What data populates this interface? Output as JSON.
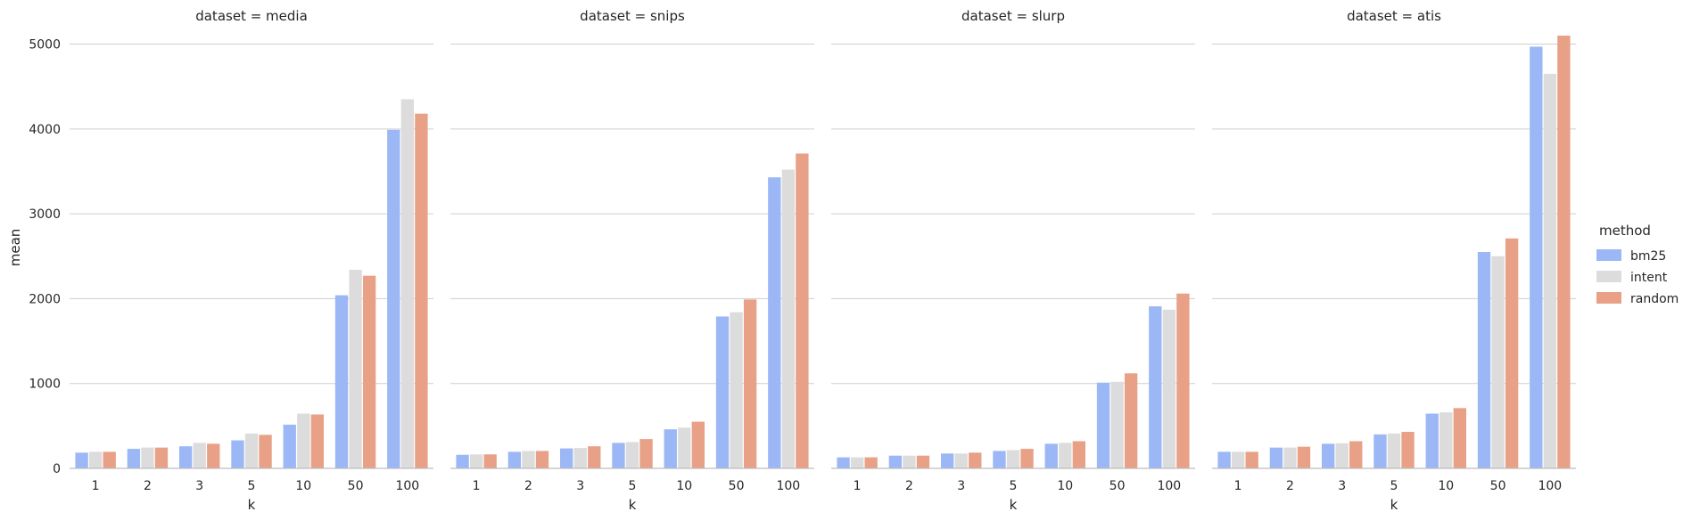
{
  "chart_data": {
    "type": "bar",
    "facet_title_prefix": "dataset = ",
    "xlabel": "k",
    "ylabel": "mean",
    "ylim": [
      0,
      5100
    ],
    "yticks": [
      0,
      1000,
      2000,
      3000,
      4000,
      5000
    ],
    "grid": "horizontal",
    "legend_title": "method",
    "legend_position": "right",
    "categories": [
      "1",
      "2",
      "3",
      "5",
      "10",
      "50",
      "100"
    ],
    "series_names": [
      "bm25",
      "intent",
      "random"
    ],
    "colors": [
      "#9bb7f5",
      "#dcdcdc",
      "#e8a086"
    ],
    "panels": [
      {
        "dataset": "media",
        "series": [
          {
            "name": "bm25",
            "values": [
              185,
              230,
              260,
              330,
              515,
              2040,
              3990
            ]
          },
          {
            "name": "intent",
            "values": [
              195,
              245,
              300,
              410,
              645,
              2340,
              4350
            ]
          },
          {
            "name": "random",
            "values": [
              195,
              245,
              290,
              395,
              635,
              2270,
              4180
            ]
          }
        ]
      },
      {
        "dataset": "snips",
        "series": [
          {
            "name": "bm25",
            "values": [
              160,
              195,
              235,
              300,
              460,
              1790,
              3430
            ]
          },
          {
            "name": "intent",
            "values": [
              165,
              205,
              240,
              310,
              480,
              1840,
              3520
            ]
          },
          {
            "name": "random",
            "values": [
              165,
              205,
              260,
              345,
              550,
              1990,
              3710
            ]
          }
        ]
      },
      {
        "dataset": "slurp",
        "series": [
          {
            "name": "bm25",
            "values": [
              130,
              150,
              175,
              205,
              290,
              1010,
              1910
            ]
          },
          {
            "name": "intent",
            "values": [
              130,
              150,
              175,
              215,
              300,
              1020,
              1870
            ]
          },
          {
            "name": "random",
            "values": [
              130,
              150,
              185,
              230,
              320,
              1120,
              2060
            ]
          }
        ]
      },
      {
        "dataset": "atis",
        "series": [
          {
            "name": "bm25",
            "values": [
              195,
              245,
              290,
              400,
              645,
              2550,
              4970
            ]
          },
          {
            "name": "intent",
            "values": [
              195,
              245,
              295,
              410,
              660,
              2500,
              4650
            ]
          },
          {
            "name": "random",
            "values": [
              195,
              255,
              320,
              430,
              710,
              2710,
              5100
            ]
          }
        ]
      }
    ]
  }
}
